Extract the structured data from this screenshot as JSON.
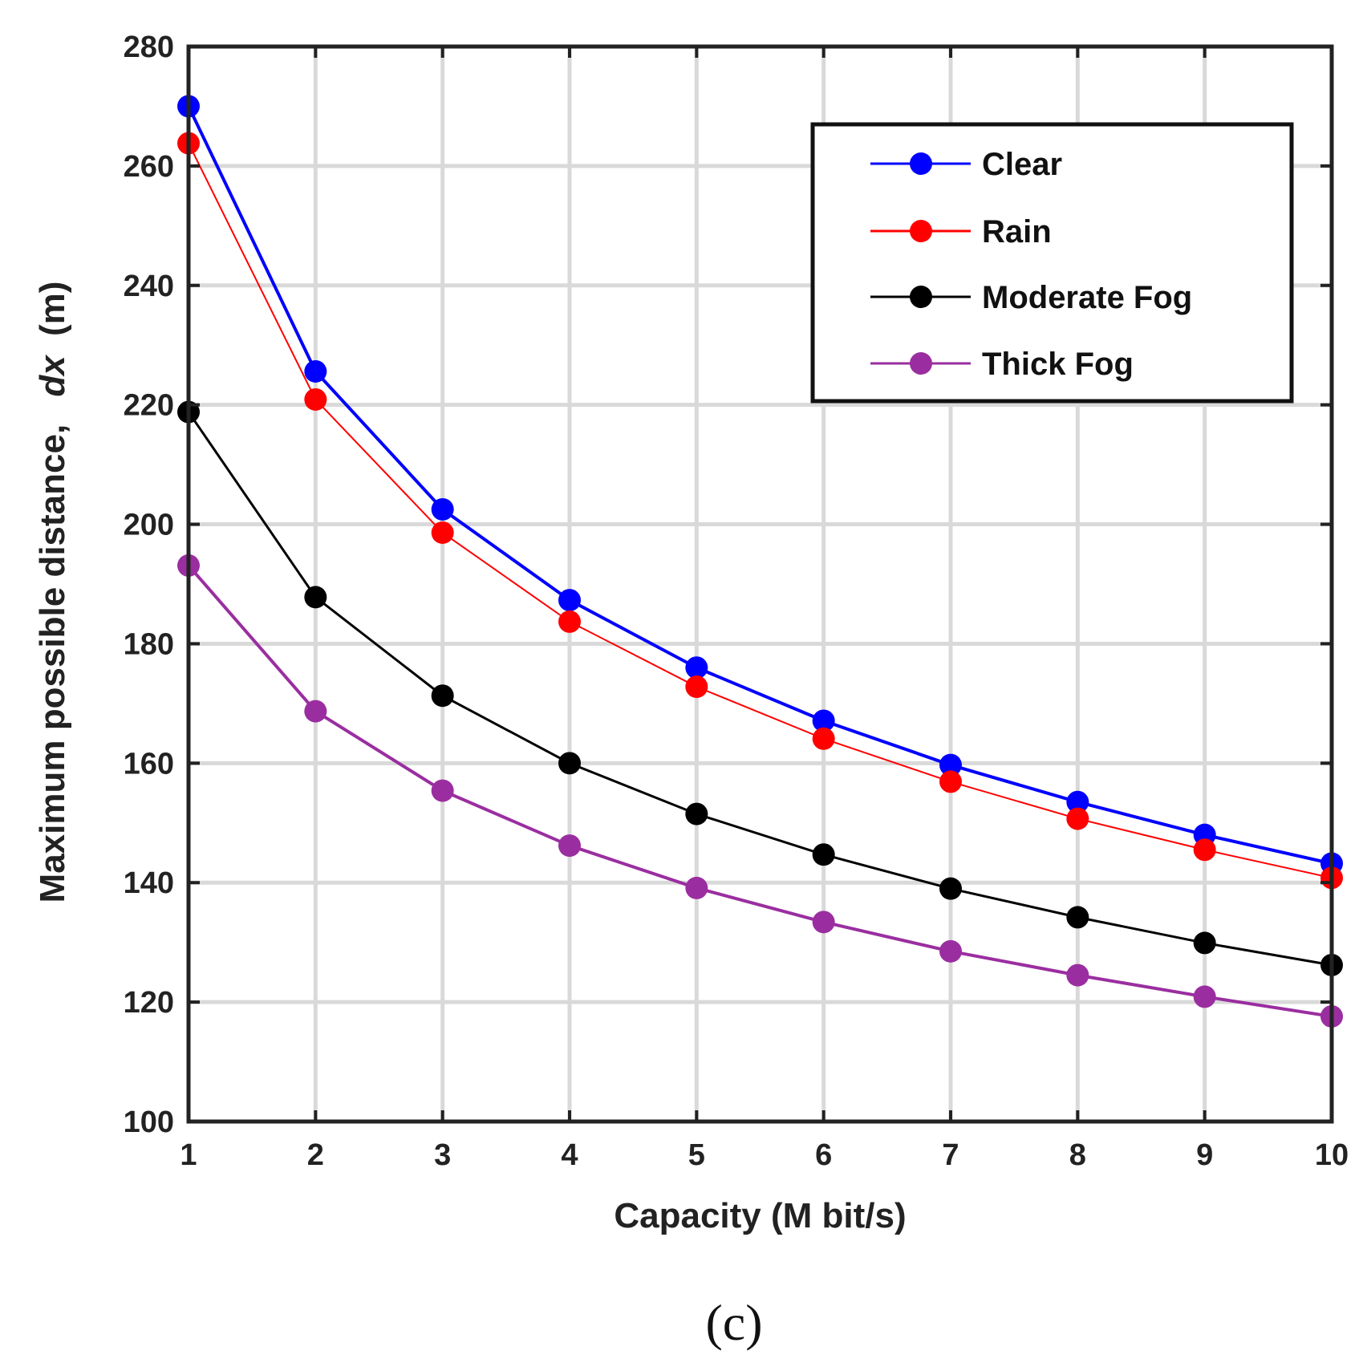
{
  "chart_data": {
    "type": "line",
    "title": "",
    "xlabel": "Capacity (M bit/s)",
    "ylabel_prefix": "Maximum possible distance,",
    "ylabel_var": "dx",
    "ylabel_unit": "(m)",
    "panel_label": "(c)",
    "x": [
      1,
      2,
      3,
      4,
      5,
      6,
      7,
      8,
      9,
      10
    ],
    "xlim": [
      1,
      10
    ],
    "ylim": [
      100,
      280
    ],
    "xticks": [
      1,
      2,
      3,
      4,
      5,
      6,
      7,
      8,
      9,
      10
    ],
    "yticks": [
      100,
      120,
      140,
      160,
      180,
      200,
      220,
      240,
      260,
      280
    ],
    "grid": true,
    "legend_position": "top-right",
    "series": [
      {
        "name": "Clear",
        "color": "#0000ff",
        "values": [
          270,
          225.6,
          202.5,
          187.3,
          176.0,
          167.1,
          159.7,
          153.5,
          148.0,
          143.2
        ]
      },
      {
        "name": "Rain",
        "color": "#ff0000",
        "values": [
          263.8,
          220.9,
          198.6,
          183.7,
          172.8,
          164.1,
          156.9,
          150.7,
          145.5,
          140.8
        ]
      },
      {
        "name": "Moderate Fog",
        "color": "#000000",
        "values": [
          218.8,
          187.8,
          171.3,
          160.0,
          151.5,
          144.7,
          139.0,
          134.2,
          129.9,
          126.2
        ]
      },
      {
        "name": "Thick Fog",
        "color": "#9a2ea0",
        "values": [
          193.1,
          168.7,
          155.4,
          146.2,
          139.1,
          133.4,
          128.5,
          124.5,
          120.9,
          117.6
        ]
      }
    ]
  }
}
